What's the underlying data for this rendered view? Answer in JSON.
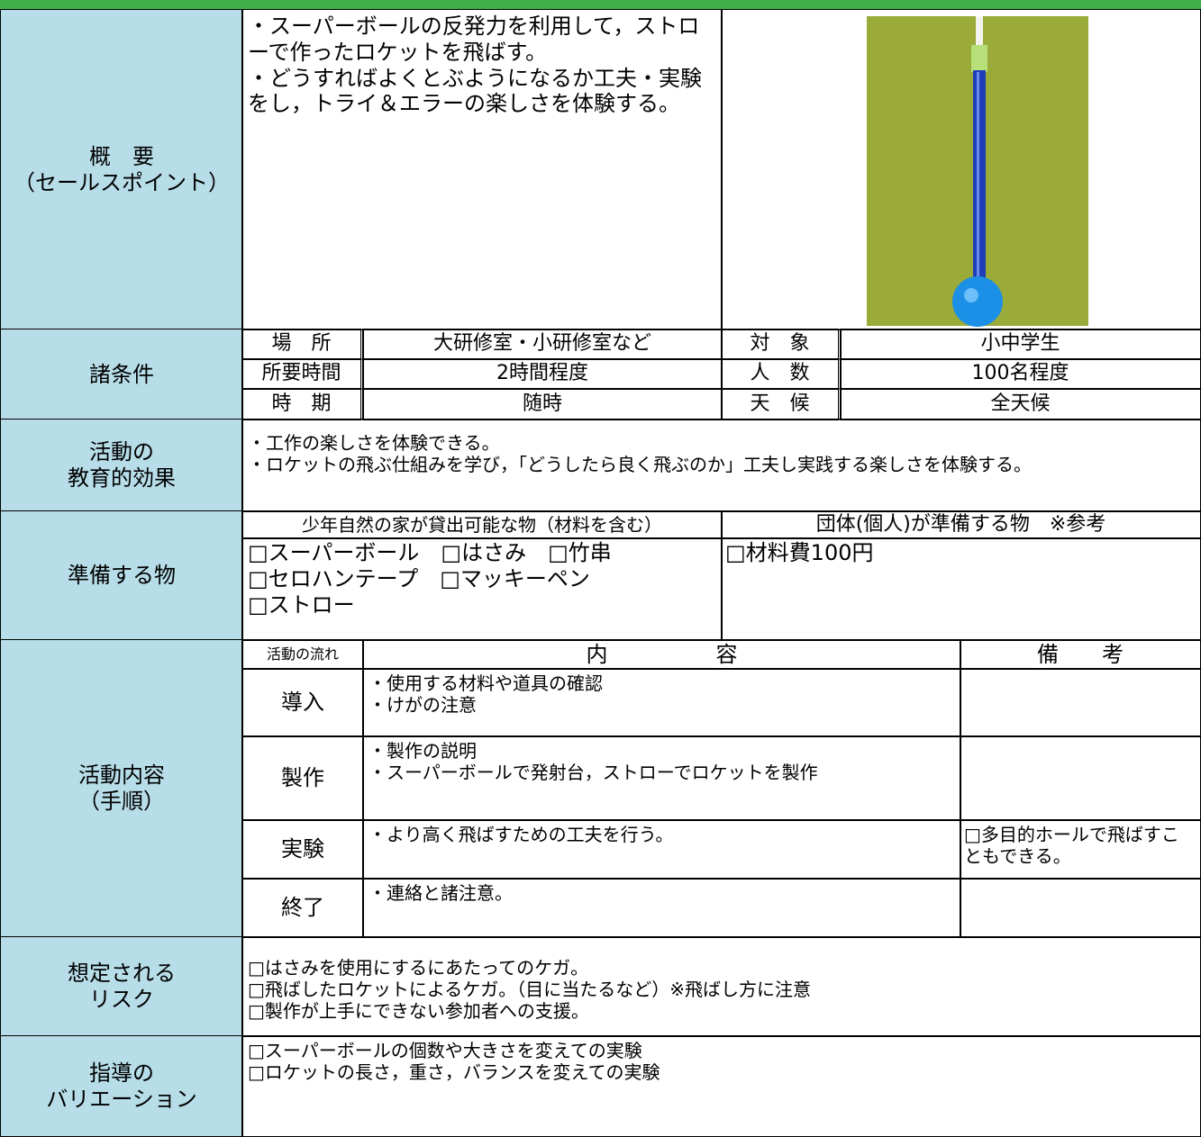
{
  "overview": {
    "label": "概　要\n（セールスポイント）",
    "text": "・スーパーボールの反発力を利用して，ストローで作ったロケットを飛ばす。\n・どうすればよくとぶようになるか工夫・実験をし，トライ＆エラーの楽しさを体験する。"
  },
  "conditions": {
    "label": "諸条件",
    "rows": [
      [
        "場　所",
        "大研修室・小研修室など",
        "対　象",
        "小中学生"
      ],
      [
        "所要時間",
        "2時間程度",
        "人　数",
        "100名程度"
      ],
      [
        "時　期",
        "随時",
        "天　候",
        "全天候"
      ]
    ]
  },
  "effects": {
    "label": "活動の\n教育的効果",
    "text": "・工作の楽しさを体験できる。\n・ロケットの飛ぶ仕組みを学び，「どうしたら良く飛ぶのか」工夫し実践する楽しさを体験する。"
  },
  "materials": {
    "label": "準備する物",
    "headers": [
      "少年自然の家が貸出可能な物（材料を含む）",
      "団体(個人)が準備する物　※参考"
    ],
    "items": [
      "□スーパーボール　□はさみ　□竹串\n□セロハンテープ　□マッキーペン\n□ストロー",
      "□材料費100円"
    ]
  },
  "activities": {
    "label": "活動内容\n（手順）",
    "headers": [
      "活動の流れ",
      "内　　　　　容",
      "備　　考"
    ],
    "rows": [
      {
        "step": "導入",
        "content": "・使用する材料や道具の確認\n・けがの注意"
      },
      {
        "step": "製作",
        "content": "・製作の説明\n・スーパーボールで発射台，ストローでロケットを製作"
      },
      {
        "step": "実験",
        "content": "・より高く飛ばすための工夫を行う。",
        "note": "□多目的ホールで飛ばすこともできる。"
      },
      {
        "step": "終了",
        "content": "・連絡と諸注意。"
      }
    ]
  },
  "risks": {
    "label": "想定される\nリスク",
    "text": "□はさみを使用にするにあたってのケガ。\n□飛ばしたロケットによるケガ。（目に当たるなど）※飛ばし方に注意\n□製作が上手にできない参加者への支援。"
  },
  "variations": {
    "label": "指導の\nバリエーション",
    "text": "□スーパーボールの個数や大きさを変えての実験\n□ロケットの長さ，重さ，バランスを変えての実験"
  }
}
